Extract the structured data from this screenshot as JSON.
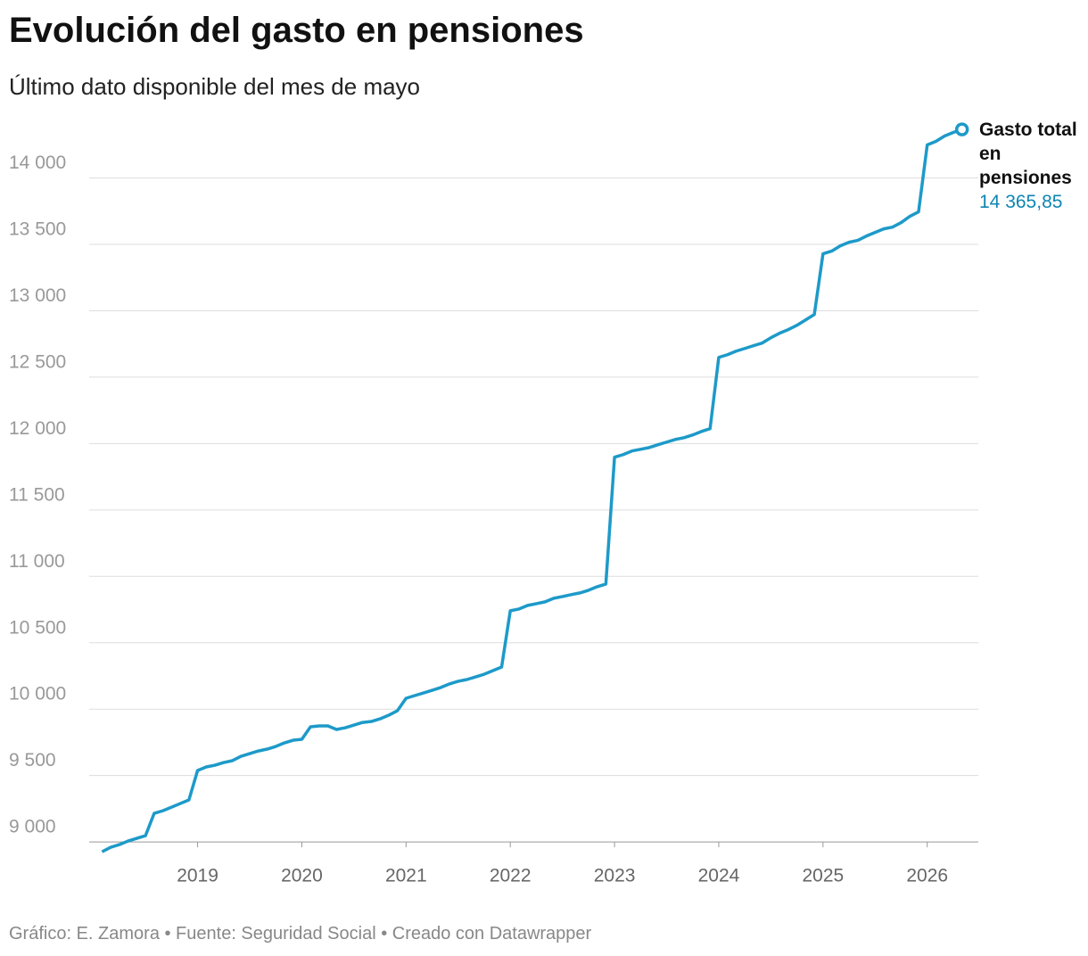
{
  "chart_data": {
    "type": "line",
    "title": "Evolución del gasto en pensiones",
    "subtitle": "Último dato disponible del mes de mayo",
    "footer": "Gráfico: E. Zamora • Fuente: Seguridad Social • Creado con Datawrapper",
    "x": [
      2018.0833,
      2018.1667,
      2018.25,
      2018.3333,
      2018.4167,
      2018.5,
      2018.5833,
      2018.6667,
      2018.75,
      2018.8333,
      2018.9167,
      2019,
      2019.0833,
      2019.1667,
      2019.25,
      2019.3333,
      2019.4167,
      2019.5,
      2019.5833,
      2019.6667,
      2019.75,
      2019.8333,
      2019.9167,
      2020,
      2020.0833,
      2020.1667,
      2020.25,
      2020.3333,
      2020.4167,
      2020.5,
      2020.5833,
      2020.6667,
      2020.75,
      2020.8333,
      2020.9167,
      2021,
      2021.0833,
      2021.1667,
      2021.25,
      2021.3333,
      2021.4167,
      2021.5,
      2021.5833,
      2021.6667,
      2021.75,
      2021.8333,
      2021.9167,
      2022,
      2022.0833,
      2022.1667,
      2022.25,
      2022.3333,
      2022.4167,
      2022.5,
      2022.5833,
      2022.6667,
      2022.75,
      2022.8333,
      2022.9167,
      2023,
      2023.0833,
      2023.1667,
      2023.25,
      2023.3333,
      2023.4167,
      2023.5,
      2023.5833,
      2023.6667,
      2023.75,
      2023.8333,
      2023.9167,
      2024,
      2024.0833,
      2024.1667,
      2024.25,
      2024.3333,
      2024.4167,
      2024.5,
      2024.5833,
      2024.6667,
      2024.75,
      2024.8333,
      2024.9167,
      2025,
      2025.0833,
      2025.1667,
      2025.25,
      2025.3333,
      2025.4167,
      2025.5,
      2025.5833,
      2025.6667,
      2025.75,
      2025.8333,
      2025.9167,
      2026,
      2026.0833,
      2026.1667,
      2026.25,
      2026.3333
    ],
    "series": [
      {
        "name": "Gasto total en pensiones",
        "color": "#1d9ac9",
        "values": [
          8926,
          8960,
          8980,
          9007,
          9027,
          9047,
          9215,
          9235,
          9262,
          9289,
          9316,
          9538,
          9565,
          9578,
          9598,
          9612,
          9645,
          9665,
          9685,
          9699,
          9719,
          9746,
          9766,
          9773,
          9867,
          9874,
          9874,
          9847,
          9860,
          9880,
          9900,
          9907,
          9927,
          9954,
          9988,
          10082,
          10102,
          10122,
          10142,
          10163,
          10190,
          10210,
          10223,
          10243,
          10263,
          10290,
          10317,
          10741,
          10754,
          10781,
          10794,
          10808,
          10835,
          10848,
          10862,
          10875,
          10895,
          10922,
          10942,
          11897,
          11917,
          11944,
          11957,
          11970,
          11991,
          12011,
          12031,
          12044,
          12065,
          12091,
          12112,
          12649,
          12669,
          12696,
          12716,
          12737,
          12757,
          12797,
          12831,
          12858,
          12891,
          12931,
          12972,
          13429,
          13449,
          13489,
          13516,
          13530,
          13563,
          13590,
          13617,
          13630,
          13664,
          13711,
          13745,
          14249,
          14276,
          14316,
          14343,
          14365.85
        ],
        "last_value_label": "14 365,85"
      }
    ],
    "xlim": [
      2017.96,
      2026.49
    ],
    "xticks": [
      2019,
      2020,
      2021,
      2022,
      2023,
      2024,
      2025,
      2026
    ],
    "ylim": [
      8900,
      14400
    ],
    "yticks": [
      {
        "value": 9000,
        "label": "9 000"
      },
      {
        "value": 9500,
        "label": "9 500"
      },
      {
        "value": 10000,
        "label": "10 000"
      },
      {
        "value": 10500,
        "label": "10 500"
      },
      {
        "value": 11000,
        "label": "11 000"
      },
      {
        "value": 11500,
        "label": "11 500"
      },
      {
        "value": 12000,
        "label": "12 000"
      },
      {
        "value": 12500,
        "label": "12 500"
      },
      {
        "value": 13000,
        "label": "13 000"
      },
      {
        "value": 13500,
        "label": "13 500"
      },
      {
        "value": 14000,
        "label": "14 000"
      }
    ],
    "grid": true
  }
}
